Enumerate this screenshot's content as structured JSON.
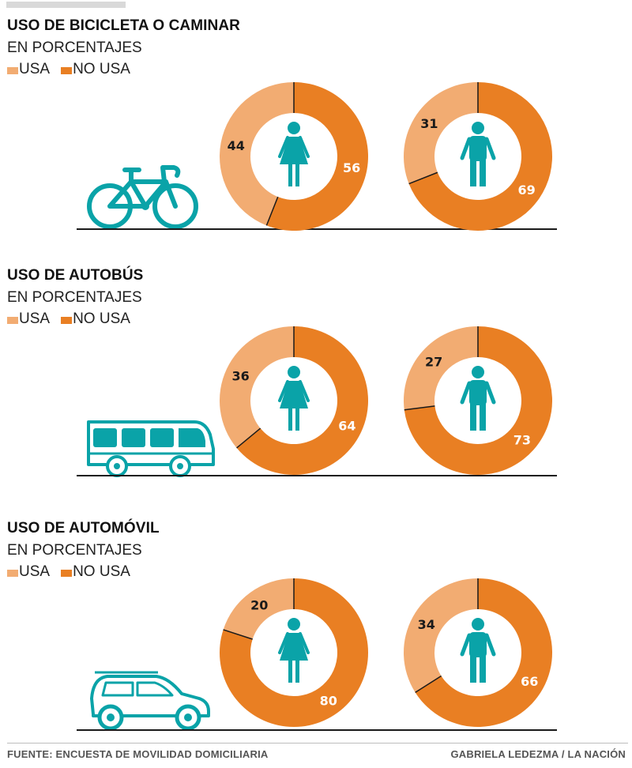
{
  "colors": {
    "uses": "#f2ac72",
    "not_uses": "#e97f23",
    "icon": "#0aa3a8",
    "text_on_light": "#1a1a1a",
    "text_on_dark": "#ffffff"
  },
  "legend": {
    "uses_label": "USA",
    "not_uses_label": "NO USA"
  },
  "sections": [
    {
      "title": "USO DE BICICLETA O CAMINAR",
      "subtitle": "EN PORCENTAJES",
      "vehicle": "bicycle-icon"
    },
    {
      "title": "USO DE AUTOBÚS",
      "subtitle": "EN PORCENTAJES",
      "vehicle": "bus-icon"
    },
    {
      "title": "USO DE AUTOMÓVIL",
      "subtitle": "EN PORCENTAJES",
      "vehicle": "car-icon"
    }
  ],
  "chart_data": [
    {
      "type": "pie",
      "title": "USO DE BICICLETA O CAMINAR",
      "subtitle": "EN PORCENTAJES",
      "categories": [
        "USA",
        "NO USA"
      ],
      "series": [
        {
          "icon": "woman-icon",
          "values": [
            44,
            56
          ]
        },
        {
          "icon": "man-icon",
          "values": [
            31,
            69
          ]
        }
      ]
    },
    {
      "type": "pie",
      "title": "USO DE AUTOBÚS",
      "subtitle": "EN PORCENTAJES",
      "categories": [
        "USA",
        "NO USA"
      ],
      "series": [
        {
          "icon": "woman-icon",
          "values": [
            36,
            64
          ]
        },
        {
          "icon": "man-icon",
          "values": [
            27,
            73
          ]
        }
      ]
    },
    {
      "type": "pie",
      "title": "USO DE AUTOMÓVIL",
      "subtitle": "EN PORCENTAJES",
      "categories": [
        "USA",
        "NO USA"
      ],
      "series": [
        {
          "icon": "woman-icon",
          "values": [
            20,
            80
          ]
        },
        {
          "icon": "man-icon",
          "values": [
            34,
            66
          ]
        }
      ]
    }
  ],
  "footer": {
    "source": "FUENTE: ENCUESTA DE MOVILIDAD DOMICILIARIA",
    "credit": "GABRIELA LEDEZMA / LA NACIÓN"
  }
}
